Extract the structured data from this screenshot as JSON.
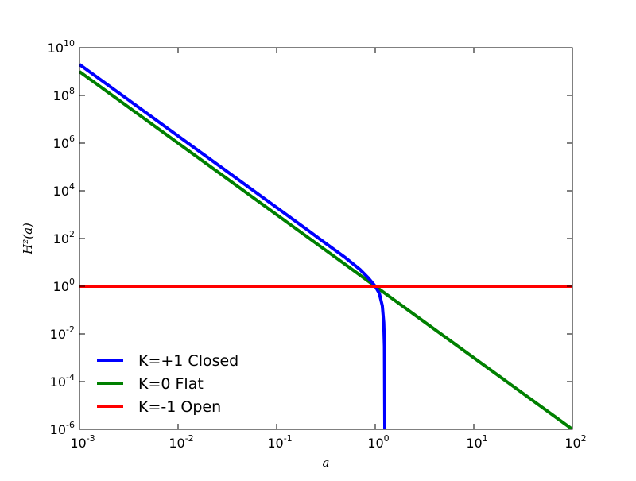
{
  "chart_data": {
    "type": "line",
    "title": "",
    "xlabel": "a",
    "ylabel": "H²(a)",
    "x_scale": "log",
    "y_scale": "log",
    "xlim": [
      0.001,
      100
    ],
    "ylim": [
      1e-06,
      10000000000
    ],
    "x_ticks": [
      {
        "base": "10",
        "exp": "-3",
        "value": 0.001
      },
      {
        "base": "10",
        "exp": "-2",
        "value": 0.01
      },
      {
        "base": "10",
        "exp": "-1",
        "value": 0.1
      },
      {
        "base": "10",
        "exp": "0",
        "value": 1
      },
      {
        "base": "10",
        "exp": "1",
        "value": 10
      },
      {
        "base": "10",
        "exp": "2",
        "value": 100
      }
    ],
    "y_ticks": [
      {
        "base": "10",
        "exp": "-6",
        "value": 1e-06
      },
      {
        "base": "10",
        "exp": "-4",
        "value": 0.0001
      },
      {
        "base": "10",
        "exp": "-2",
        "value": 0.01
      },
      {
        "base": "10",
        "exp": "0",
        "value": 1
      },
      {
        "base": "10",
        "exp": "2",
        "value": 100
      },
      {
        "base": "10",
        "exp": "4",
        "value": 10000
      },
      {
        "base": "10",
        "exp": "6",
        "value": 1000000
      },
      {
        "base": "10",
        "exp": "8",
        "value": 100000000
      },
      {
        "base": "10",
        "exp": "10",
        "value": 10000000000
      }
    ],
    "grid": false,
    "legend_position": "lower-left",
    "series": [
      {
        "name": "K=+1 Closed",
        "color": "#0000ff",
        "x": [
          0.001,
          0.003,
          0.01,
          0.03,
          0.1,
          0.2,
          0.3,
          0.5,
          0.7,
          0.85,
          1.0,
          1.1,
          1.18,
          1.22,
          1.24,
          1.25
        ],
        "y": [
          2000000000,
          74000000,
          2000000,
          74000,
          1990,
          248,
          72.3,
          15.5,
          5.03,
          2.23,
          1.0,
          0.5,
          0.15,
          0.03,
          0.003,
          1e-06
        ]
      },
      {
        "name": "K=0 Flat",
        "color": "#008000",
        "x": [
          0.001,
          0.01,
          0.1,
          1,
          10,
          100
        ],
        "y": [
          1000000000,
          1000000,
          1000,
          1,
          0.001,
          1e-06
        ]
      },
      {
        "name": "K=-1 Open",
        "color": "#ff0000",
        "x": [
          0.001,
          0.01,
          0.1,
          1,
          10,
          100
        ],
        "y": [
          1,
          1,
          1,
          1,
          1,
          1
        ]
      }
    ]
  }
}
